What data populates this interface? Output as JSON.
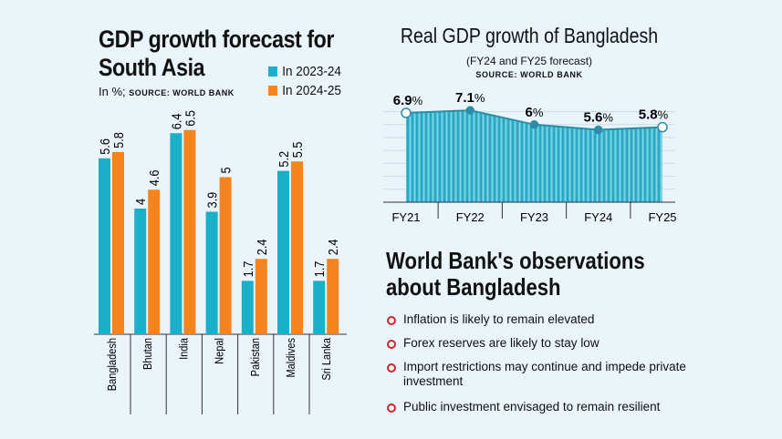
{
  "left_chart": {
    "title_line1": "GDP growth forecast for",
    "title_line2": "South Asia",
    "subtitle_prefix": "In %;",
    "source": "SOURCE: WORLD BANK"
  },
  "right_chart": {
    "title": "Real GDP growth of Bangladesh",
    "subtitle": "(FY24 and FY25 forecast)",
    "source": "SOURCE: WORLD BANK"
  },
  "observations": {
    "title_line1": "World Bank's observations",
    "title_line2": "about Bangladesh",
    "items": [
      "Inflation is likely to remain elevated",
      "Forex reserves are likely to stay low",
      "Import restrictions may continue and impede private investment",
      "Public investment envisaged to remain resilient"
    ]
  },
  "colors": {
    "teal": "#1ab0c9",
    "orange": "#f5841f",
    "bullet": "#d0262a",
    "area": "#29a9c4"
  },
  "chart_data": [
    {
      "type": "bar",
      "categories": [
        "Bangladesh",
        "Bhutan",
        "India",
        "Nepal",
        "Pakistan",
        "Maldives",
        "Sri Lanka"
      ],
      "series": [
        {
          "name": "In 2023-24",
          "values": [
            5.6,
            4,
            6.4,
            3.9,
            1.7,
            5.2,
            1.7
          ],
          "labels": [
            "5.6",
            "4",
            "6.4",
            "3.9",
            "1.7",
            "5.2",
            "1.7"
          ]
        },
        {
          "name": "In 2024-25",
          "values": [
            5.8,
            4.6,
            6.5,
            5,
            2.4,
            5.5,
            2.4
          ],
          "labels": [
            "5.8",
            "4.6",
            "6.5",
            "5",
            "2.4",
            "5.5",
            "2.4"
          ]
        }
      ],
      "ylim": [
        0,
        6.5
      ],
      "legend": "top-right",
      "grid": false
    },
    {
      "type": "area",
      "categories": [
        "FY21",
        "FY22",
        "FY23",
        "FY24",
        "FY25"
      ],
      "values": [
        6.9,
        7.1,
        6,
        5.6,
        5.8
      ],
      "labels": [
        "6.9",
        "7.1",
        "6",
        "5.6",
        "5.8"
      ],
      "unit": "%",
      "ylim": [
        0,
        8
      ],
      "grid": true
    }
  ]
}
